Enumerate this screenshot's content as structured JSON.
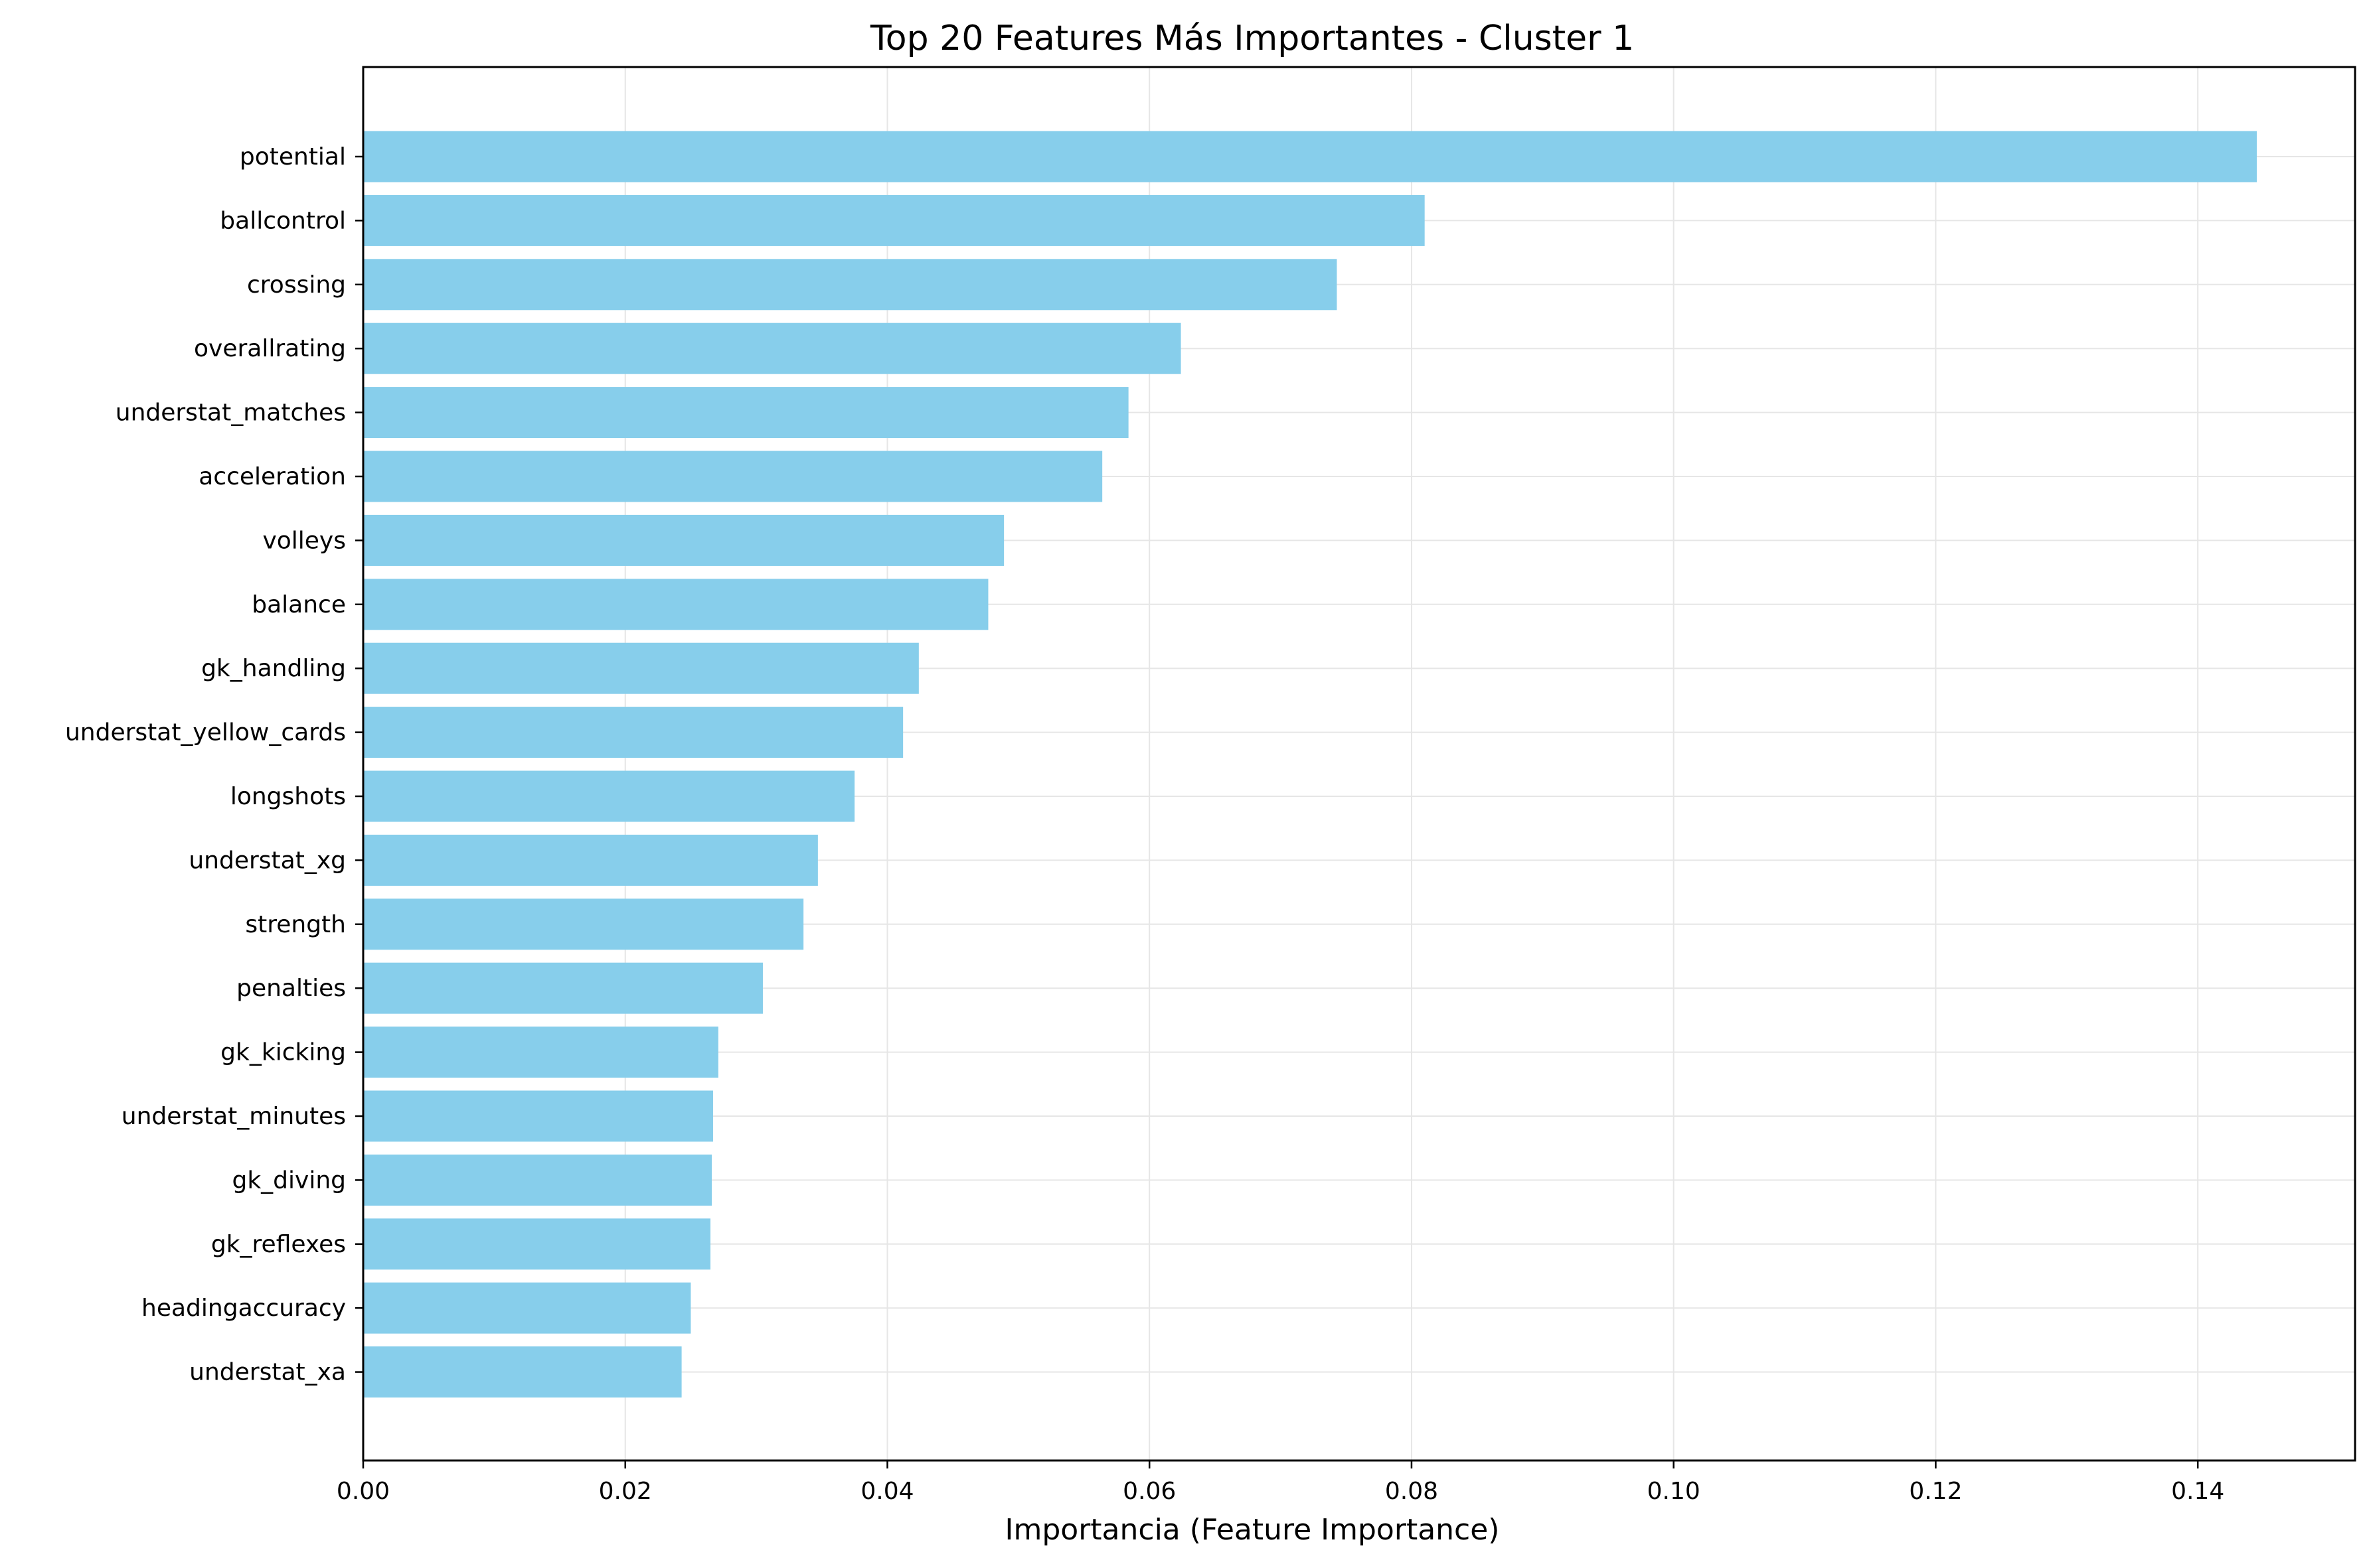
{
  "chart_data": {
    "type": "bar",
    "orientation": "horizontal",
    "title": "Top 20 Features Más Importantes - Cluster 1",
    "xlabel": "Importancia (Feature Importance)",
    "ylabel": "",
    "xlim": [
      0,
      0.152
    ],
    "xticks": [
      0.0,
      0.02,
      0.04,
      0.06,
      0.08,
      0.1,
      0.12,
      0.14
    ],
    "xtick_labels": [
      "0.00",
      "0.02",
      "0.04",
      "0.06",
      "0.08",
      "0.10",
      "0.12",
      "0.14"
    ],
    "grid": true,
    "bar_color": "#87ceeb",
    "categories": [
      "potential",
      "ballcontrol",
      "crossing",
      "overallrating",
      "understat_matches",
      "acceleration",
      "volleys",
      "balance",
      "gk_handling",
      "understat_yellow_cards",
      "longshots",
      "understat_xg",
      "strength",
      "penalties",
      "gk_kicking",
      "understat_minutes",
      "gk_diving",
      "gk_reflexes",
      "headingaccuracy",
      "understat_xa"
    ],
    "values": [
      0.1445,
      0.081,
      0.0743,
      0.0624,
      0.0584,
      0.0564,
      0.0489,
      0.0477,
      0.0424,
      0.0412,
      0.0375,
      0.0347,
      0.0336,
      0.0305,
      0.0271,
      0.0267,
      0.0266,
      0.0265,
      0.025,
      0.0243
    ]
  }
}
